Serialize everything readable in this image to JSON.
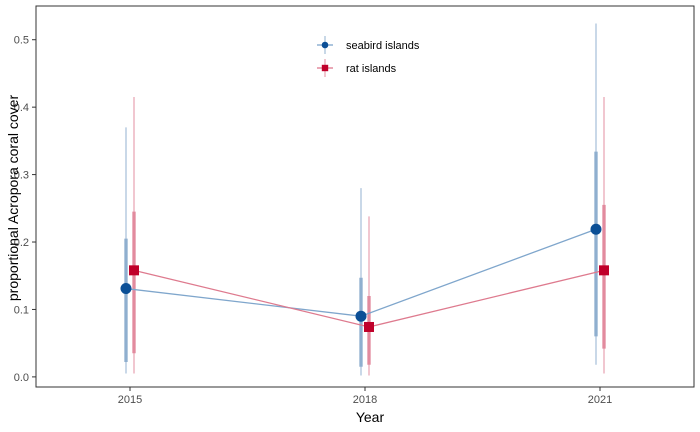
{
  "chart_data": {
    "type": "line",
    "title": "",
    "xlabel": "Year",
    "ylabel": "proportional Acropora coral cover",
    "x": [
      2015,
      2018,
      2021
    ],
    "x_ticks": [
      "2015",
      "2018",
      "2021"
    ],
    "xlim": [
      2013.8,
      2022.2
    ],
    "y_ticks": [
      "0.0",
      "0.1",
      "0.2",
      "0.3",
      "0.4",
      "0.5"
    ],
    "ylim": [
      -0.015,
      0.55
    ],
    "grid": false,
    "legend_position": "top-center",
    "series": [
      {
        "name": "seabird islands",
        "color": "#0b4f96",
        "line_color": "#7fa6cc",
        "marker": "circle",
        "values": [
          0.131,
          0.09,
          0.219
        ],
        "inner_interval": [
          [
            0.022,
            0.205
          ],
          [
            0.015,
            0.147
          ],
          [
            0.06,
            0.334
          ]
        ],
        "outer_interval": [
          [
            0.005,
            0.37
          ],
          [
            0.002,
            0.28
          ],
          [
            0.018,
            0.524
          ]
        ]
      },
      {
        "name": "rat islands",
        "color": "#c0002a",
        "line_color": "#de7a8e",
        "marker": "square",
        "values": [
          0.158,
          0.074,
          0.158
        ],
        "inner_interval": [
          [
            0.035,
            0.245
          ],
          [
            0.018,
            0.12
          ],
          [
            0.042,
            0.255
          ]
        ],
        "outer_interval": [
          [
            0.005,
            0.415
          ],
          [
            0.002,
            0.238
          ],
          [
            0.005,
            0.415
          ]
        ]
      }
    ]
  }
}
